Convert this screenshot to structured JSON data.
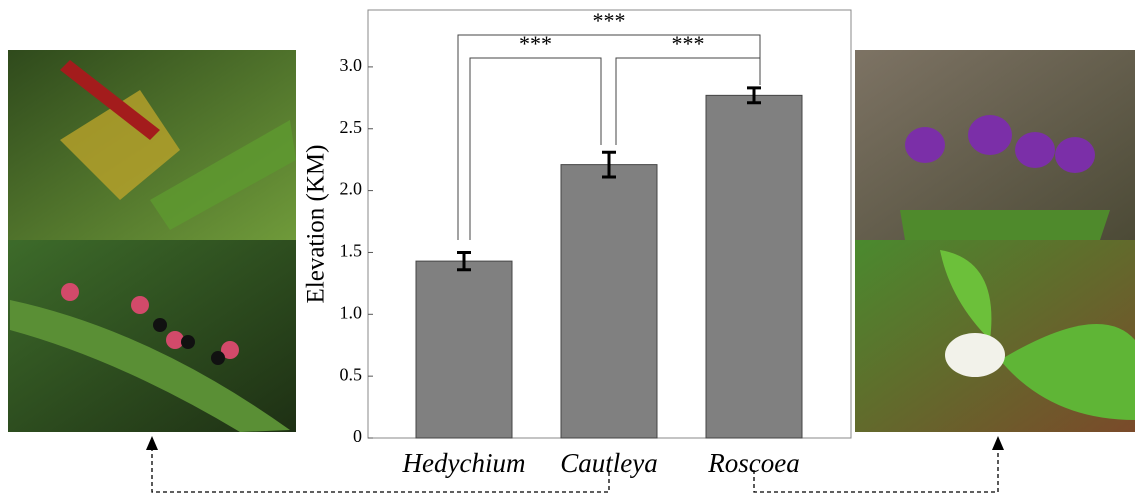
{
  "chart_data": {
    "type": "bar",
    "y_label": "Elevation (KM)",
    "categories": [
      "Hedychium",
      "Cautleya",
      "Roscoea"
    ],
    "values": [
      1.43,
      2.21,
      2.77
    ],
    "errors": [
      0.07,
      0.1,
      0.06
    ],
    "color": "#808080",
    "ylim": [
      0,
      3.46
    ],
    "yticks": [
      0,
      0.5,
      {
        "value": 1,
        "label": "1.0"
      },
      1.5,
      {
        "value": 2,
        "label": "2.0"
      },
      2.5,
      {
        "value": 3,
        "label": "3.0"
      }
    ],
    "annotations": [
      "***",
      "***",
      "***"
    ]
  }
}
